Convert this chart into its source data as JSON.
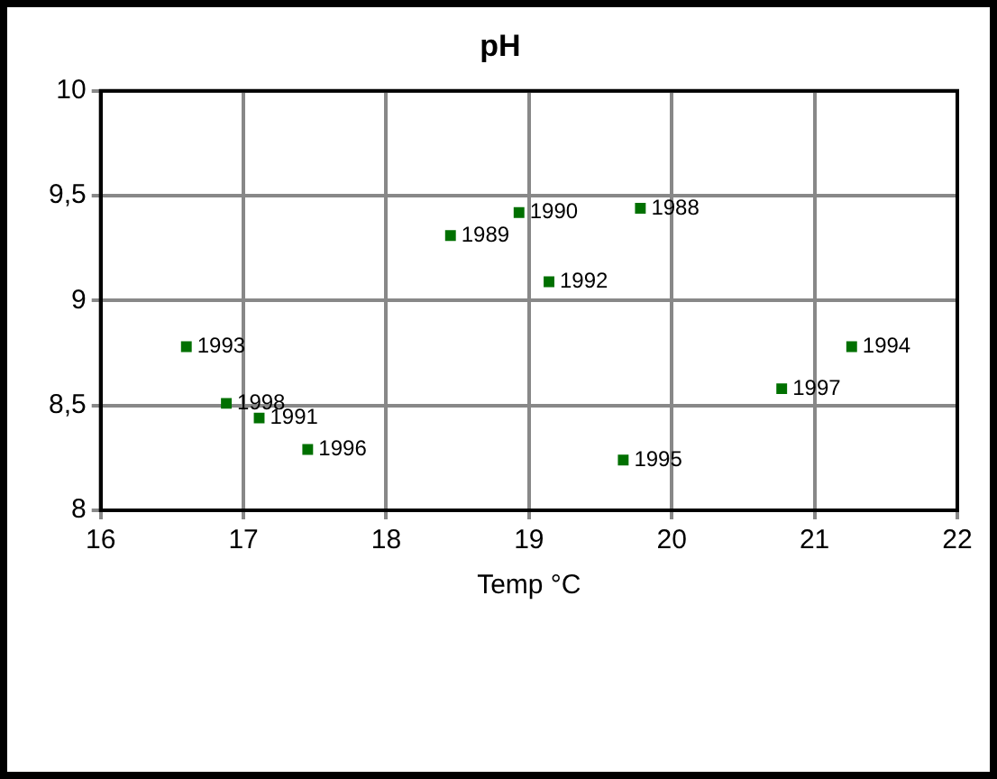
{
  "chart_data": {
    "type": "scatter",
    "title": "pH",
    "xlabel": "Temp °C",
    "x": [
      16.6,
      16.88,
      17.11,
      17.45,
      18.45,
      18.93,
      19.14,
      19.78,
      19.66,
      20.77,
      21.26
    ],
    "values": [
      8.78,
      8.51,
      8.44,
      8.29,
      9.31,
      9.42,
      9.09,
      9.44,
      8.24,
      8.58,
      8.78
    ],
    "color": "#007000",
    "marker": "square",
    "xlim": [
      16,
      22
    ],
    "xticks": [
      16,
      17,
      18,
      19,
      20,
      21,
      22
    ],
    "ylim": [
      8,
      10
    ],
    "yticks": [
      8,
      {
        "value": 8.5,
        "label": "8,5"
      },
      9,
      {
        "value": 9.5,
        "label": "9,5"
      },
      10
    ],
    "grid": true,
    "legend": false,
    "annotations": [
      {
        "text": "1993",
        "x": 16.6,
        "y": 8.78
      },
      {
        "text": "1998",
        "x": 16.88,
        "y": 8.51
      },
      {
        "text": "1991",
        "x": 17.11,
        "y": 8.44
      },
      {
        "text": "1996",
        "x": 17.45,
        "y": 8.29
      },
      {
        "text": "1989",
        "x": 18.45,
        "y": 9.31
      },
      {
        "text": "1990",
        "x": 18.93,
        "y": 9.42
      },
      {
        "text": "1992",
        "x": 19.14,
        "y": 9.09
      },
      {
        "text": "1988",
        "x": 19.78,
        "y": 9.44
      },
      {
        "text": "1995",
        "x": 19.66,
        "y": 8.24
      },
      {
        "text": "1997",
        "x": 20.77,
        "y": 8.58
      },
      {
        "text": "1994",
        "x": 21.26,
        "y": 8.78
      }
    ]
  }
}
